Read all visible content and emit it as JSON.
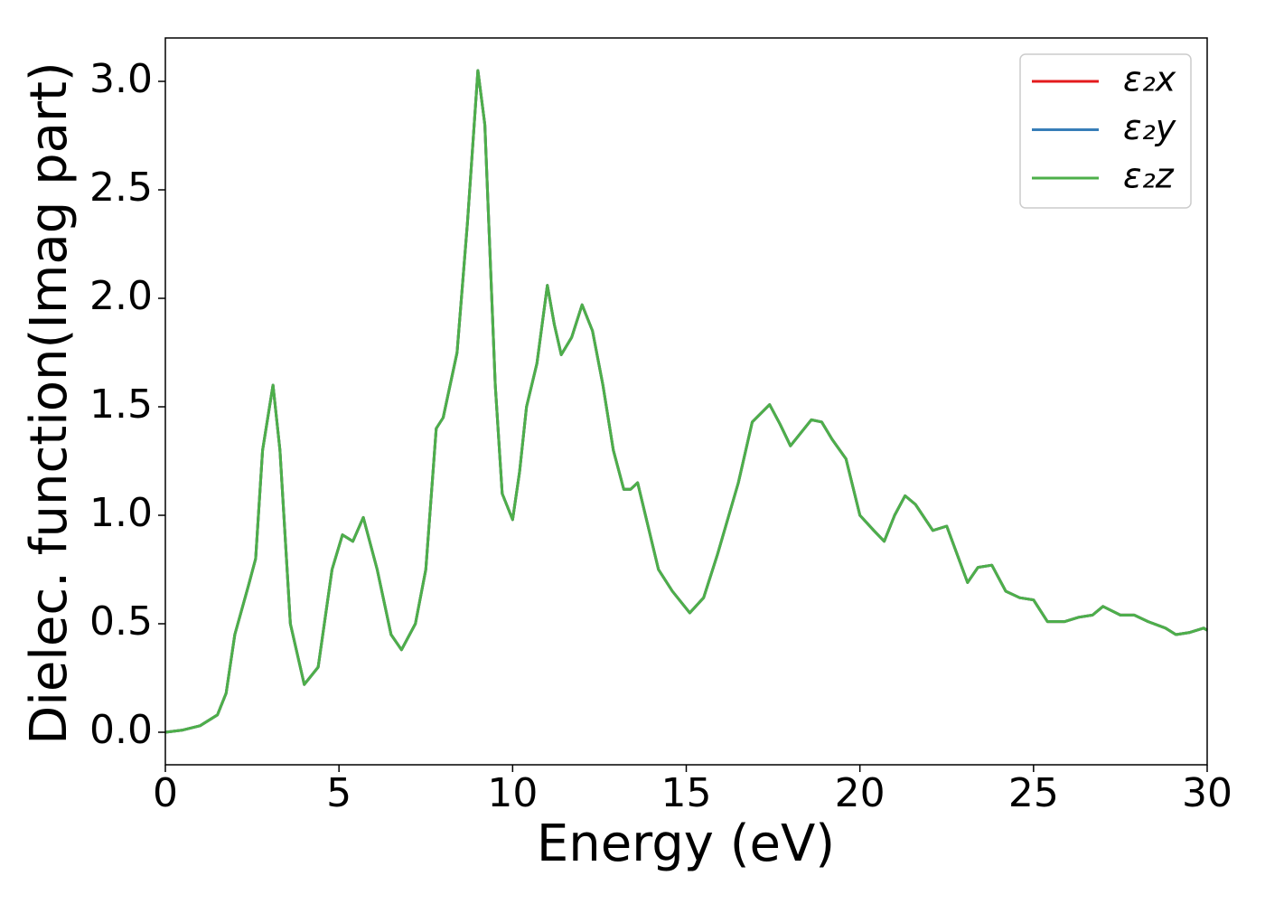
{
  "chart_data": {
    "type": "line",
    "xlabel": "Energy (eV)",
    "ylabel": "Dielec. function(Imag part)",
    "x": [
      0,
      0.5,
      1.0,
      1.5,
      1.75,
      2.0,
      2.4,
      2.6,
      2.8,
      3.1,
      3.3,
      3.6,
      4.0,
      4.4,
      4.8,
      5.1,
      5.4,
      5.7,
      6.1,
      6.5,
      6.8,
      7.2,
      7.5,
      7.8,
      8.0,
      8.4,
      8.7,
      9.0,
      9.2,
      9.5,
      9.7,
      10.0,
      10.2,
      10.4,
      10.7,
      11.0,
      11.2,
      11.4,
      11.7,
      12.0,
      12.3,
      12.6,
      12.9,
      13.2,
      13.4,
      13.6,
      13.9,
      14.2,
      14.6,
      15.1,
      15.5,
      15.9,
      16.5,
      16.9,
      17.4,
      17.7,
      18.0,
      18.3,
      18.6,
      18.9,
      19.2,
      19.6,
      20.0,
      20.4,
      20.7,
      21.0,
      21.3,
      21.6,
      22.1,
      22.5,
      22.8,
      23.1,
      23.4,
      23.8,
      24.2,
      24.6,
      25.0,
      25.4,
      25.9,
      26.3,
      26.7,
      27.0,
      27.5,
      27.9,
      28.3,
      28.8,
      29.1,
      29.5,
      29.9,
      30.0
    ],
    "series": [
      {
        "name": "ε₂x",
        "color": "#e41a1c",
        "values": [
          0,
          0.01,
          0.03,
          0.08,
          0.18,
          0.45,
          0.68,
          0.8,
          1.3,
          1.6,
          1.3,
          0.5,
          0.22,
          0.3,
          0.75,
          0.91,
          0.88,
          0.99,
          0.75,
          0.45,
          0.38,
          0.5,
          0.75,
          1.4,
          1.45,
          1.75,
          2.35,
          3.05,
          2.8,
          1.6,
          1.1,
          0.98,
          1.2,
          1.5,
          1.7,
          2.06,
          1.88,
          1.74,
          1.82,
          1.97,
          1.85,
          1.6,
          1.3,
          1.12,
          1.12,
          1.15,
          0.95,
          0.75,
          0.65,
          0.55,
          0.62,
          0.82,
          1.15,
          1.43,
          1.51,
          1.42,
          1.32,
          1.38,
          1.44,
          1.43,
          1.35,
          1.26,
          1.0,
          0.93,
          0.88,
          1.0,
          1.09,
          1.05,
          0.93,
          0.95,
          0.82,
          0.69,
          0.76,
          0.77,
          0.65,
          0.62,
          0.61,
          0.51,
          0.51,
          0.53,
          0.54,
          0.58,
          0.54,
          0.54,
          0.51,
          0.48,
          0.45,
          0.46,
          0.48,
          0.47
        ]
      },
      {
        "name": "ε₂y",
        "color": "#377eb8",
        "values": [
          0,
          0.01,
          0.03,
          0.08,
          0.18,
          0.45,
          0.68,
          0.8,
          1.3,
          1.6,
          1.3,
          0.5,
          0.22,
          0.3,
          0.75,
          0.91,
          0.88,
          0.99,
          0.75,
          0.45,
          0.38,
          0.5,
          0.75,
          1.4,
          1.45,
          1.75,
          2.35,
          3.05,
          2.8,
          1.6,
          1.1,
          0.98,
          1.2,
          1.5,
          1.7,
          2.06,
          1.88,
          1.74,
          1.82,
          1.97,
          1.85,
          1.6,
          1.3,
          1.12,
          1.12,
          1.15,
          0.95,
          0.75,
          0.65,
          0.55,
          0.62,
          0.82,
          1.15,
          1.43,
          1.51,
          1.42,
          1.32,
          1.38,
          1.44,
          1.43,
          1.35,
          1.26,
          1.0,
          0.93,
          0.88,
          1.0,
          1.09,
          1.05,
          0.93,
          0.95,
          0.82,
          0.69,
          0.76,
          0.77,
          0.65,
          0.62,
          0.61,
          0.51,
          0.51,
          0.53,
          0.54,
          0.58,
          0.54,
          0.54,
          0.51,
          0.48,
          0.45,
          0.46,
          0.48,
          0.47
        ]
      },
      {
        "name": "ε₂z",
        "color": "#4daf4a",
        "values": [
          0,
          0.01,
          0.03,
          0.08,
          0.18,
          0.45,
          0.68,
          0.8,
          1.3,
          1.6,
          1.3,
          0.5,
          0.22,
          0.3,
          0.75,
          0.91,
          0.88,
          0.99,
          0.75,
          0.45,
          0.38,
          0.5,
          0.75,
          1.4,
          1.45,
          1.75,
          2.35,
          3.05,
          2.8,
          1.6,
          1.1,
          0.98,
          1.2,
          1.5,
          1.7,
          2.06,
          1.88,
          1.74,
          1.82,
          1.97,
          1.85,
          1.6,
          1.3,
          1.12,
          1.12,
          1.15,
          0.95,
          0.75,
          0.65,
          0.55,
          0.62,
          0.82,
          1.15,
          1.43,
          1.51,
          1.42,
          1.32,
          1.38,
          1.44,
          1.43,
          1.35,
          1.26,
          1.0,
          0.93,
          0.88,
          1.0,
          1.09,
          1.05,
          0.93,
          0.95,
          0.82,
          0.69,
          0.76,
          0.77,
          0.65,
          0.62,
          0.61,
          0.51,
          0.51,
          0.53,
          0.54,
          0.58,
          0.54,
          0.54,
          0.51,
          0.48,
          0.45,
          0.46,
          0.48,
          0.47
        ]
      }
    ],
    "xlim": [
      0,
      30
    ],
    "xticks": [
      0,
      5,
      10,
      15,
      20,
      25,
      30
    ],
    "ylim": [
      -0.15,
      3.2
    ],
    "yticks": [
      {
        "value": 0,
        "label": "0.0"
      },
      0.5,
      {
        "value": 1,
        "label": "1.0"
      },
      1.5,
      {
        "value": 2,
        "label": "2.0"
      },
      2.5,
      {
        "value": 3,
        "label": "3.0"
      }
    ],
    "legend": "upper right",
    "grid": false
  }
}
